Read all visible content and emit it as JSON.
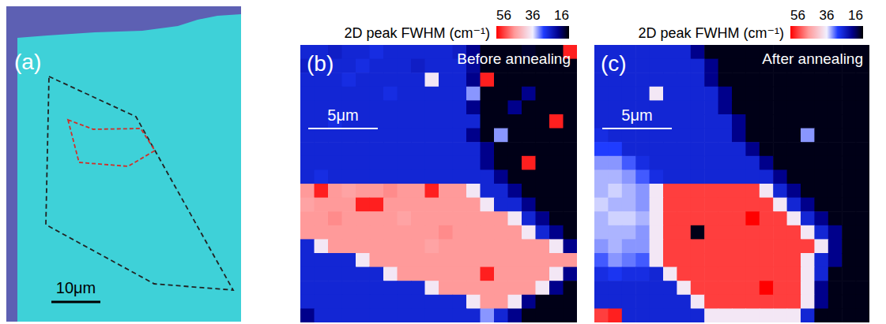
{
  "chart_data": [
    {
      "type": "image",
      "label": "(a)",
      "scale_bar_label": "10μm"
    },
    {
      "type": "heatmap",
      "label": "(b)",
      "title": "Before annealing",
      "scale_bar_label": "5μm",
      "colorbar_title": "2D peak FWHM (cm⁻¹)",
      "colorbar_range": [
        56,
        16
      ],
      "colorbar_ticks": [
        56,
        36,
        16
      ],
      "cells": [
        [
          27,
          27,
          26,
          27,
          27,
          28,
          27,
          27,
          27,
          27,
          27,
          26,
          22,
          17,
          17,
          17,
          18,
          17,
          17,
          54
        ],
        [
          26,
          27,
          27,
          27,
          28,
          27,
          27,
          27,
          26,
          27,
          27,
          27,
          23,
          17,
          17,
          17,
          17,
          17,
          17,
          17
        ],
        [
          27,
          27,
          27,
          28,
          27,
          27,
          27,
          27,
          27,
          37,
          27,
          27,
          22,
          54,
          17,
          17,
          17,
          17,
          17,
          17
        ],
        [
          27,
          27,
          27,
          27,
          27,
          27,
          28,
          27,
          27,
          27,
          27,
          27,
          33,
          17,
          17,
          17,
          22,
          17,
          17,
          17
        ],
        [
          27,
          27,
          27,
          27,
          27,
          27,
          27,
          27,
          27,
          27,
          27,
          27,
          22,
          17,
          17,
          22,
          17,
          17,
          17,
          17
        ],
        [
          27,
          27,
          28,
          27,
          27,
          27,
          27,
          27,
          27,
          27,
          27,
          27,
          27,
          17,
          17,
          17,
          17,
          17,
          54,
          17
        ],
        [
          27,
          27,
          27,
          27,
          27,
          27,
          27,
          27,
          27,
          27,
          27,
          27,
          22,
          17,
          33,
          17,
          17,
          17,
          17,
          17
        ],
        [
          27,
          27,
          27,
          27,
          27,
          27,
          27,
          27,
          27,
          27,
          27,
          27,
          27,
          22,
          17,
          17,
          17,
          17,
          17,
          17
        ],
        [
          27,
          27,
          27,
          27,
          27,
          27,
          27,
          27,
          27,
          27,
          27,
          27,
          27,
          22,
          17,
          17,
          54,
          17,
          17,
          17
        ],
        [
          27,
          28,
          27,
          27,
          27,
          27,
          27,
          27,
          27,
          27,
          27,
          27,
          27,
          27,
          22,
          17,
          17,
          17,
          17,
          17
        ],
        [
          46,
          54,
          46,
          45,
          46,
          46,
          47,
          46,
          46,
          54,
          46,
          46,
          37,
          27,
          27,
          22,
          17,
          17,
          17,
          17
        ],
        [
          45,
          46,
          46,
          46,
          54,
          54,
          46,
          46,
          46,
          46,
          46,
          46,
          46,
          37,
          27,
          27,
          22,
          17,
          17,
          17
        ],
        [
          46,
          46,
          47,
          46,
          46,
          46,
          46,
          45,
          46,
          46,
          46,
          46,
          46,
          46,
          46,
          37,
          27,
          22,
          17,
          17
        ],
        [
          46,
          46,
          46,
          46,
          46,
          46,
          46,
          46,
          46,
          46,
          47,
          46,
          46,
          46,
          46,
          46,
          37,
          27,
          22,
          17
        ],
        [
          27,
          37,
          46,
          46,
          46,
          46,
          46,
          46,
          46,
          45,
          46,
          46,
          46,
          46,
          46,
          46,
          46,
          46,
          37,
          22
        ],
        [
          27,
          27,
          27,
          27,
          37,
          46,
          46,
          46,
          46,
          46,
          46,
          46,
          46,
          46,
          46,
          46,
          46,
          46,
          46,
          46
        ],
        [
          27,
          27,
          27,
          27,
          27,
          27,
          37,
          46,
          46,
          46,
          46,
          46,
          46,
          54,
          46,
          46,
          46,
          46,
          37,
          22
        ],
        [
          27,
          27,
          27,
          27,
          27,
          27,
          27,
          27,
          27,
          37,
          46,
          46,
          46,
          46,
          46,
          46,
          46,
          37,
          22,
          17
        ],
        [
          27,
          27,
          27,
          27,
          27,
          27,
          27,
          27,
          27,
          27,
          27,
          27,
          37,
          46,
          46,
          37,
          22,
          17,
          17,
          17
        ],
        [
          22,
          27,
          27,
          27,
          27,
          27,
          27,
          27,
          27,
          27,
          27,
          27,
          27,
          33,
          27,
          22,
          17,
          17,
          17,
          17
        ]
      ]
    },
    {
      "type": "heatmap",
      "label": "(c)",
      "title": "After annealing",
      "scale_bar_label": "5μm",
      "colorbar_title": "2D peak FWHM (cm⁻¹)",
      "colorbar_range": [
        56,
        16
      ],
      "colorbar_ticks": [
        56,
        36,
        16
      ],
      "cells": [
        [
          27,
          27,
          27,
          27,
          27,
          27,
          27,
          22,
          17,
          17,
          17,
          17,
          17,
          17,
          17,
          17,
          17,
          17,
          17,
          17
        ],
        [
          27,
          27,
          27,
          27,
          27,
          27,
          27,
          27,
          22,
          17,
          17,
          17,
          17,
          17,
          17,
          17,
          17,
          17,
          17,
          17
        ],
        [
          27,
          27,
          27,
          27,
          27,
          27,
          27,
          27,
          22,
          17,
          17,
          17,
          17,
          17,
          17,
          17,
          17,
          17,
          17,
          17
        ],
        [
          27,
          27,
          27,
          27,
          37,
          27,
          27,
          27,
          27,
          22,
          17,
          17,
          17,
          17,
          17,
          17,
          17,
          17,
          17,
          17
        ],
        [
          27,
          27,
          27,
          27,
          27,
          27,
          27,
          27,
          27,
          22,
          17,
          17,
          17,
          17,
          17,
          17,
          17,
          17,
          17,
          17
        ],
        [
          27,
          27,
          27,
          27,
          27,
          27,
          27,
          27,
          27,
          27,
          22,
          17,
          17,
          17,
          17,
          17,
          17,
          17,
          17,
          17
        ],
        [
          28,
          27,
          27,
          27,
          27,
          27,
          27,
          27,
          27,
          27,
          22,
          17,
          17,
          17,
          17,
          33,
          17,
          17,
          17,
          17
        ],
        [
          30,
          30,
          27,
          27,
          27,
          27,
          27,
          27,
          27,
          27,
          27,
          22,
          17,
          17,
          17,
          17,
          17,
          17,
          17,
          17
        ],
        [
          33,
          33,
          31,
          28,
          27,
          27,
          27,
          27,
          27,
          27,
          27,
          27,
          22,
          17,
          17,
          17,
          17,
          17,
          17,
          17
        ],
        [
          34,
          34,
          33,
          31,
          28,
          27,
          27,
          27,
          27,
          27,
          27,
          27,
          27,
          22,
          17,
          17,
          17,
          17,
          17,
          17
        ],
        [
          34,
          35,
          34,
          33,
          37,
          52,
          52,
          52,
          52,
          52,
          52,
          52,
          37,
          27,
          22,
          17,
          17,
          17,
          17,
          17
        ],
        [
          35,
          34,
          34,
          33,
          37,
          52,
          52,
          52,
          52,
          52,
          52,
          52,
          52,
          37,
          27,
          22,
          17,
          17,
          17,
          17
        ],
        [
          34,
          35,
          35,
          34,
          37,
          52,
          52,
          52,
          52,
          52,
          52,
          56,
          52,
          52,
          37,
          27,
          22,
          17,
          17,
          17
        ],
        [
          34,
          34,
          34,
          33,
          37,
          52,
          52,
          17,
          52,
          52,
          52,
          52,
          52,
          52,
          52,
          37,
          27,
          22,
          17,
          17
        ],
        [
          33,
          34,
          33,
          33,
          37,
          52,
          52,
          52,
          52,
          52,
          52,
          52,
          52,
          52,
          52,
          52,
          37,
          22,
          17,
          17
        ],
        [
          31,
          33,
          32,
          31,
          37,
          52,
          52,
          52,
          52,
          52,
          52,
          52,
          52,
          52,
          52,
          37,
          27,
          22,
          17,
          17
        ],
        [
          28,
          29,
          28,
          28,
          27,
          37,
          52,
          52,
          52,
          52,
          52,
          52,
          52,
          52,
          52,
          37,
          27,
          17,
          17,
          17
        ],
        [
          27,
          27,
          27,
          27,
          27,
          27,
          37,
          52,
          52,
          52,
          52,
          52,
          56,
          52,
          52,
          37,
          22,
          17,
          17,
          17
        ],
        [
          27,
          27,
          27,
          27,
          27,
          27,
          27,
          37,
          52,
          52,
          52,
          52,
          52,
          52,
          52,
          37,
          22,
          17,
          17,
          17
        ],
        [
          52,
          54,
          27,
          27,
          27,
          27,
          27,
          27,
          37,
          37,
          37,
          37,
          37,
          37,
          37,
          27,
          17,
          17,
          17,
          17
        ]
      ]
    }
  ]
}
